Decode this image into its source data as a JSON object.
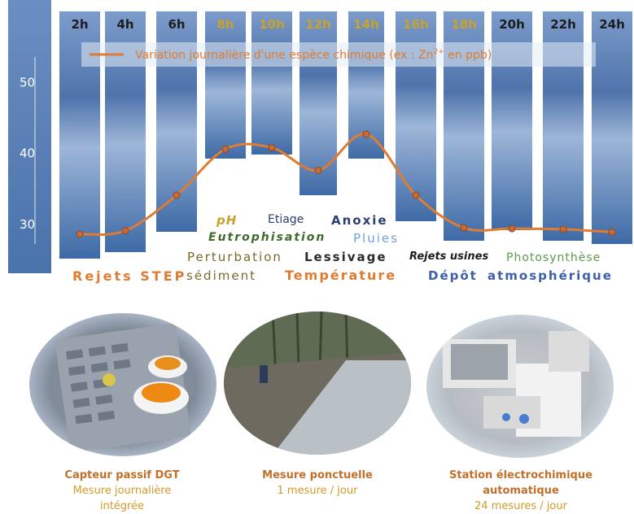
{
  "legend_label": "Variation journalière d'une espèce chimique (ex : Zn",
  "legend_sup": "2+",
  "legend_tail": " en ppb)",
  "colors": {
    "panel": "#5b82b8",
    "panel_dark": "#3f6aa5",
    "curve": "#e07b32",
    "hour_dark": "#1d1d1d",
    "hour_gold": "#c8a22a",
    "drv_orange": "#e07b32",
    "drv_olive": "#7a6a2a",
    "drv_navy": "#2c3e70",
    "drv_green": "#3d6b2a",
    "drv_lightblue": "#6fa3d8",
    "drv_blue": "#3d5fa8",
    "drv_lightgreen": "#5c9a4a",
    "drv_gold": "#c8a22a",
    "caption_title": "#c0702a",
    "caption_sub": "#d49a2a"
  },
  "chart_data": {
    "type": "line",
    "title": "Variation journalière d'une espèce chimique (ex : Zn2+ en ppb)",
    "categories": [
      "2h",
      "4h",
      "6h",
      "8h",
      "10h",
      "12h",
      "14h",
      "16h",
      "18h",
      "20h",
      "22h",
      "24h"
    ],
    "values": [
      28.5,
      29,
      34,
      40.5,
      40.7,
      37.5,
      42.6,
      34,
      29.4,
      29.3,
      29.2,
      28.8
    ],
    "yticks": [
      "30",
      "40",
      "50"
    ],
    "ylim": [
      25,
      56
    ]
  },
  "hour_style": [
    "dark",
    "dark",
    "dark",
    "gold",
    "gold",
    "gold",
    "gold",
    "gold",
    "gold",
    "dark",
    "dark",
    "dark"
  ],
  "drivers": {
    "ph": "pH",
    "etiage": "Etiage",
    "anoxie": "Anoxie",
    "eutrophisation": "Eutrophisation",
    "pluies": "Pluies",
    "perturbation": "Perturbation",
    "lessivage": "Lessivage",
    "rejets_usines": "Rejets usines",
    "photosynthese": "Photosynthèse",
    "rejets_step": "Rejets STEP",
    "sediment": "sédiment",
    "temperature": "Température",
    "depot": "Dépôt",
    "atmospherique": "atmosphérique"
  },
  "methods": [
    {
      "title": "Capteur passif DGT",
      "sub1": "Mesure journalière",
      "sub2": "intégrée"
    },
    {
      "title": "Mesure ponctuelle",
      "sub1": "1 mesure / jour",
      "sub2": ""
    },
    {
      "title": "Station électrochimique",
      "title2": "automatique",
      "sub1": "24 mesures / jour"
    }
  ]
}
